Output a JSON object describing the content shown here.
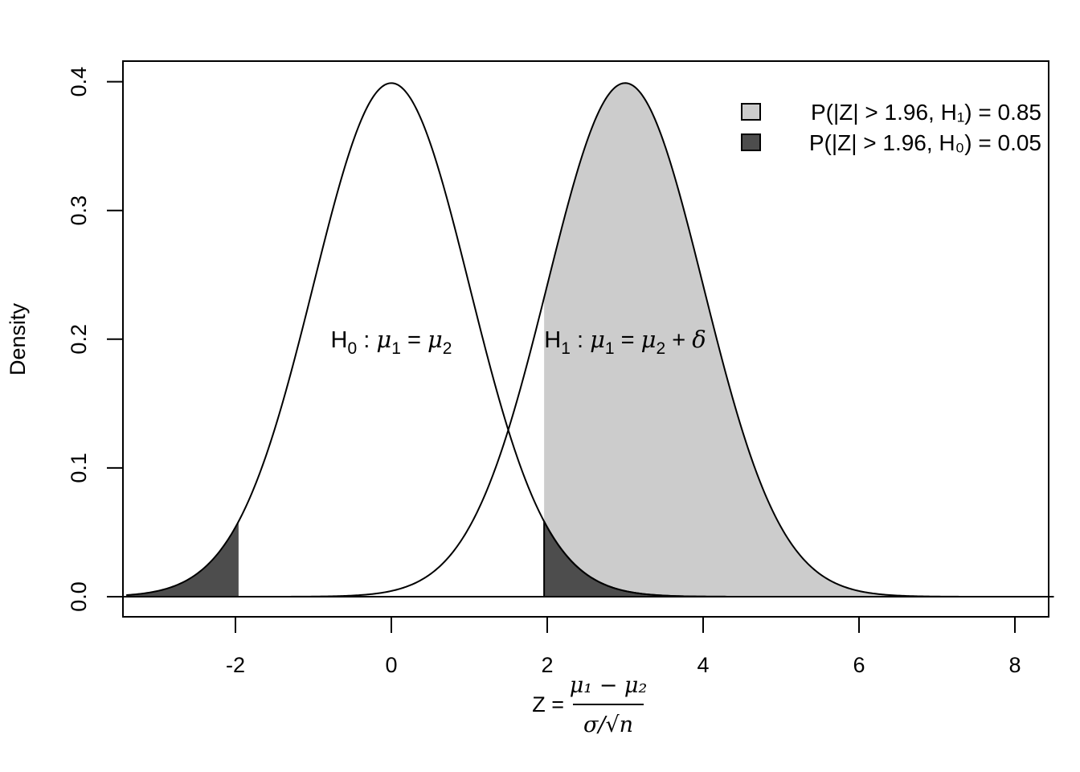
{
  "chart_data": {
    "type": "area",
    "ylabel": "Density",
    "xlabel": {
      "prefix": "Z =",
      "numerator": "μ₁ − μ₂",
      "denominator": "σ/√n"
    },
    "xlim": [
      -3.4,
      8.5
    ],
    "ylim": [
      0,
      0.4
    ],
    "x_ticks": [
      -2,
      0,
      2,
      4,
      6,
      8
    ],
    "x_tick_labels": [
      "-2",
      "0",
      "2",
      "4",
      "6",
      "8"
    ],
    "y_ticks": [
      0.0,
      0.1,
      0.2,
      0.3,
      0.4
    ],
    "y_tick_labels": [
      "0.0",
      "0.1",
      "0.2",
      "0.3",
      "0.4"
    ],
    "critical_value": 1.96,
    "series": [
      {
        "distribution": "normal",
        "mean": 0,
        "sd": 1
      },
      {
        "distribution": "normal",
        "mean": 3,
        "sd": 1
      }
    ],
    "annotations": [
      {
        "x": 0,
        "y": 0.2,
        "label": "H: μ = μ",
        "h_sub": "0",
        "left_sub": "1",
        "right_sub": "2"
      },
      {
        "x": 3,
        "y": 0.2,
        "label": "H: μ = μ + δ",
        "h_sub": "1",
        "left_sub": "1",
        "right_sub": "2"
      }
    ],
    "legend": {
      "position": "top-right",
      "entries": [
        {
          "label": "P(|Z| > 1.96, H₁) = 0.85",
          "fill": "#cccccc"
        },
        {
          "label": "P(|Z| > 1.96, H₀) = 0.05",
          "fill": "#4d4d4d"
        }
      ]
    },
    "grid": false,
    "colors": {
      "power_fill": "#cccccc",
      "alpha_fill": "#4d4d4d",
      "line": "#000000"
    }
  }
}
